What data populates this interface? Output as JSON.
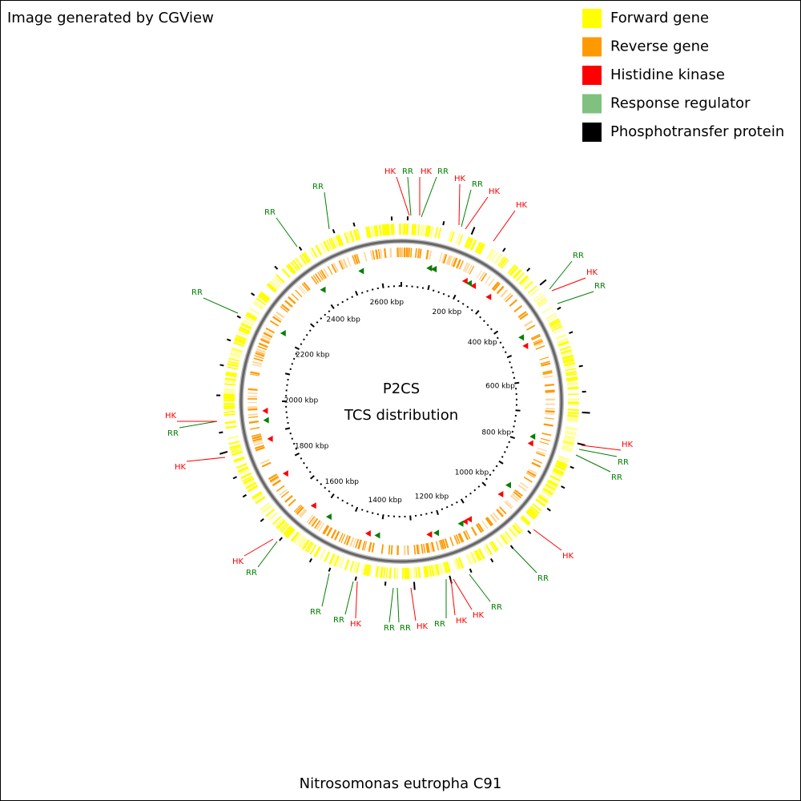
{
  "header": {
    "title": "Image generated by CGView"
  },
  "legend": [
    {
      "label": "Forward gene",
      "color": "#ffff00"
    },
    {
      "label": "Reverse gene",
      "color": "#ff9900"
    },
    {
      "label": "Histidine kinase",
      "color": "#ff0000"
    },
    {
      "label": "Response regulator",
      "color": "#80c080"
    },
    {
      "label": "Phosphotransfer protein",
      "color": "#000000"
    }
  ],
  "center": {
    "title": "P2CS",
    "subtitle": "TCS distribution"
  },
  "ruler": [
    "200 kbp",
    "400 kbp",
    "600 kbp",
    "800 kbp",
    "1000 kbp",
    "1200 kbp",
    "1400 kbp",
    "1600 kbp",
    "1800 kbp",
    "2000 kbp",
    "2200 kbp",
    "2400 kbp",
    "2600 kbp"
  ],
  "features": [
    {
      "label": "HK"
    },
    {
      "label": "RR"
    },
    {
      "label": "HK"
    },
    {
      "label": "RR"
    },
    {
      "label": "HK"
    },
    {
      "label": "RR"
    },
    {
      "label": "HK"
    },
    {
      "label": "HK"
    },
    {
      "label": "RR"
    },
    {
      "label": "HK"
    },
    {
      "label": "RR"
    },
    {
      "label": "HK"
    },
    {
      "label": "RR"
    },
    {
      "label": "RR"
    },
    {
      "label": "HK"
    },
    {
      "label": "RR"
    },
    {
      "label": "RR"
    },
    {
      "label": "HK"
    },
    {
      "label": "HK"
    },
    {
      "label": "RR"
    },
    {
      "label": "HK"
    },
    {
      "label": "RR"
    },
    {
      "label": "RR"
    },
    {
      "label": "HK"
    },
    {
      "label": "RR"
    },
    {
      "label": "RR"
    },
    {
      "label": "RR"
    },
    {
      "label": "HK"
    },
    {
      "label": "HK"
    },
    {
      "label": "RR"
    },
    {
      "label": "HK"
    },
    {
      "label": "RR"
    },
    {
      "label": "RR"
    },
    {
      "label": "RR"
    }
  ],
  "footer": {
    "caption": "Nitrosomonas eutropha C91"
  }
}
